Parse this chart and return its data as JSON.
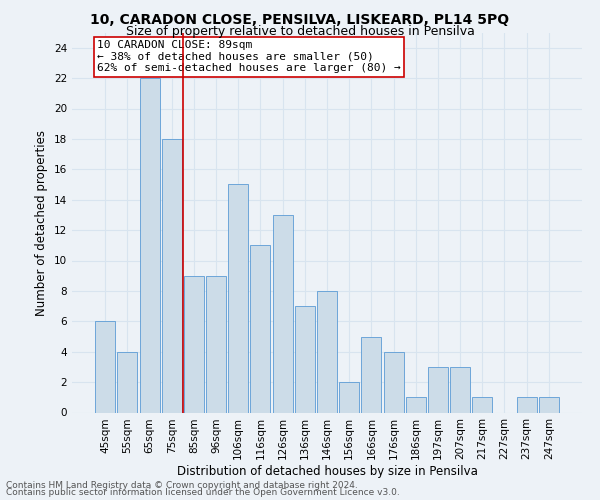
{
  "title": "10, CARADON CLOSE, PENSILVA, LISKEARD, PL14 5PQ",
  "subtitle": "Size of property relative to detached houses in Pensilva",
  "xlabel": "Distribution of detached houses by size in Pensilva",
  "ylabel": "Number of detached properties",
  "footnote1": "Contains HM Land Registry data © Crown copyright and database right 2024.",
  "footnote2": "Contains public sector information licensed under the Open Government Licence v3.0.",
  "annotation_line1": "10 CARADON CLOSE: 89sqm",
  "annotation_line2": "← 38% of detached houses are smaller (50)",
  "annotation_line3": "62% of semi-detached houses are larger (80) →",
  "categories": [
    "45sqm",
    "55sqm",
    "65sqm",
    "75sqm",
    "85sqm",
    "96sqm",
    "106sqm",
    "116sqm",
    "126sqm",
    "136sqm",
    "146sqm",
    "156sqm",
    "166sqm",
    "176sqm",
    "186sqm",
    "197sqm",
    "207sqm",
    "217sqm",
    "227sqm",
    "237sqm",
    "247sqm"
  ],
  "values": [
    6,
    4,
    22,
    18,
    9,
    9,
    15,
    11,
    13,
    7,
    8,
    2,
    5,
    4,
    1,
    3,
    3,
    1,
    0,
    1,
    1
  ],
  "bar_color": "#ccdce8",
  "bar_edge_color": "#5b9bd5",
  "vline_x": 3.5,
  "vline_color": "#cc0000",
  "ylim": [
    0,
    25
  ],
  "yticks": [
    0,
    2,
    4,
    6,
    8,
    10,
    12,
    14,
    16,
    18,
    20,
    22,
    24
  ],
  "background_color": "#edf2f7",
  "grid_color": "#d8e4ef",
  "annotation_box_color": "#ffffff",
  "annotation_box_edge": "#cc0000",
  "title_fontsize": 10,
  "subtitle_fontsize": 9,
  "xlabel_fontsize": 8.5,
  "ylabel_fontsize": 8.5,
  "tick_fontsize": 7.5,
  "annotation_fontsize": 8,
  "footnote_fontsize": 6.5
}
